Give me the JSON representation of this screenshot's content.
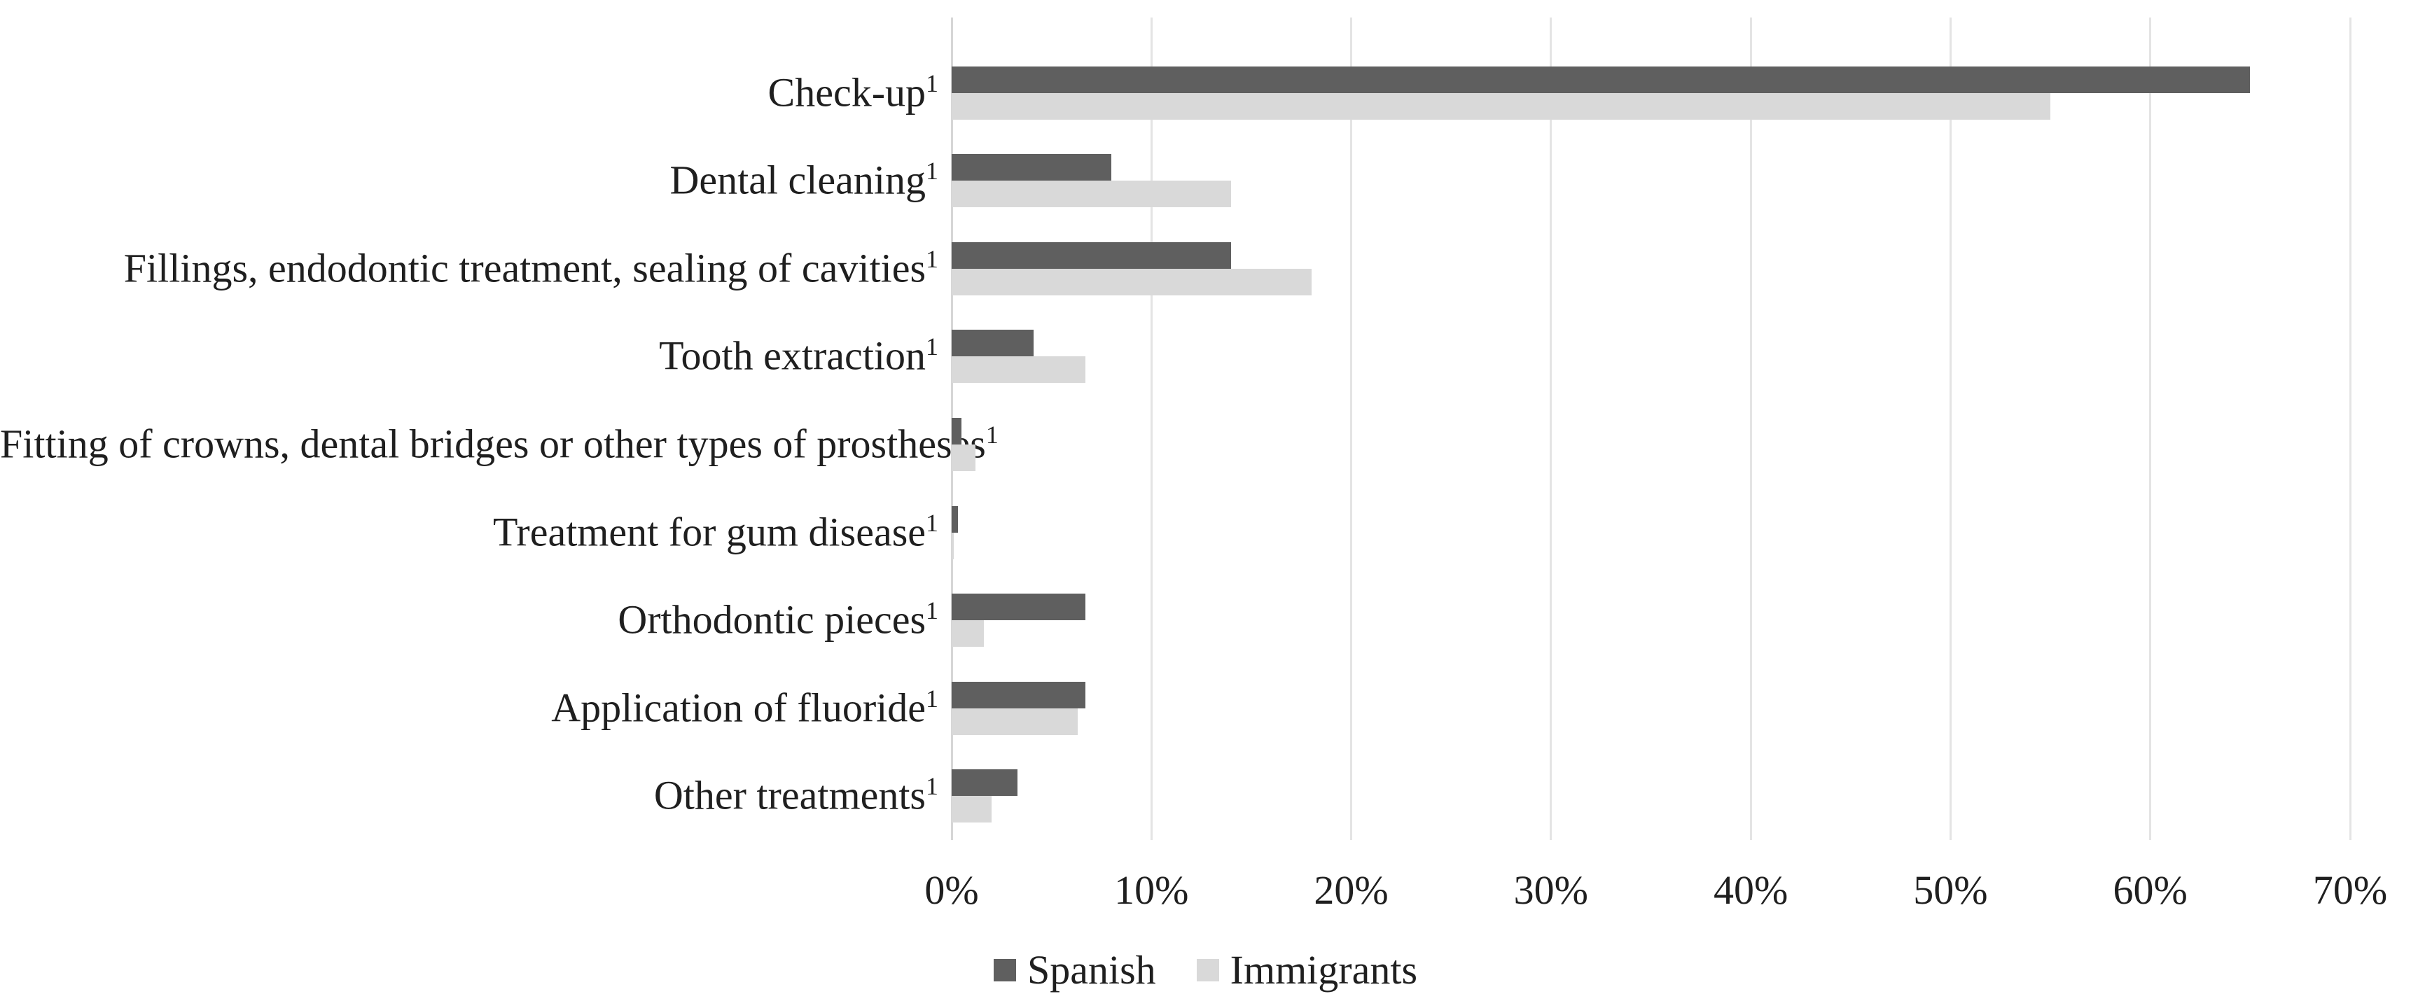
{
  "figure": {
    "background_color": "#ffffff",
    "text_color": "#1f1f1f",
    "gridline_color": "#e4e4e4",
    "axis_line_color": "#d6d6d6"
  },
  "chart_data": {
    "type": "bar",
    "orientation": "horizontal",
    "title": "",
    "xlabel": "",
    "ylabel": "",
    "categories": [
      "Check-up",
      "Dental cleaning",
      "Fillings, endodontic treatment, sealing of cavities",
      "Tooth extraction",
      "Fitting of crowns, dental bridges or other types of prostheses",
      "Treatment for gum disease",
      "Orthodontic pieces",
      "Application of fluoride",
      "Other treatments"
    ],
    "category_footnote_marker": "1",
    "series": [
      {
        "name": "Spanish",
        "color": "#5f5f5f",
        "values": [
          65,
          8,
          14,
          4.1,
          0.5,
          0.3,
          6.7,
          6.7,
          3.3
        ]
      },
      {
        "name": "Immigrants",
        "color": "#d9d9d9",
        "values": [
          55,
          14,
          18,
          6.7,
          1.2,
          0.1,
          1.6,
          6.3,
          2.0
        ]
      }
    ],
    "xlim": [
      0,
      70
    ],
    "x_tick_labels": [
      "0%",
      "10%",
      "20%",
      "30%",
      "40%",
      "50%",
      "60%",
      "70%"
    ],
    "grid": "vertical-only",
    "legend_position": "bottom-center"
  }
}
